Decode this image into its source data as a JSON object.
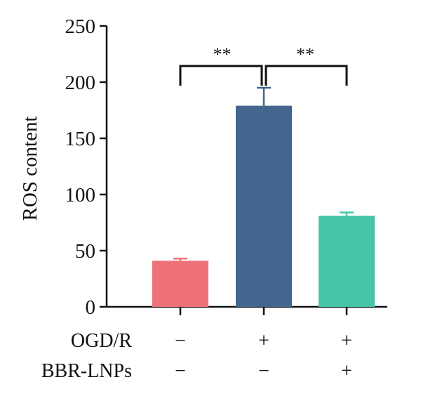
{
  "chart_data": {
    "type": "bar",
    "ylabel": "ROS content",
    "ylim": [
      0,
      250
    ],
    "yticks": [
      0,
      50,
      100,
      150,
      200,
      250
    ],
    "grid": false,
    "bars": [
      {
        "value": 41,
        "error": 2,
        "color": "#ee7178"
      },
      {
        "value": 179,
        "error": 16,
        "color": "#43668e"
      },
      {
        "value": 81,
        "error": 3,
        "color": "#46c4a8"
      }
    ],
    "conditions": [
      {
        "label": "OGD/R",
        "marks": [
          "−",
          "+",
          "+"
        ]
      },
      {
        "label": "BBR-LNPs",
        "marks": [
          "−",
          "−",
          "+"
        ]
      }
    ],
    "significance": [
      {
        "from": 0,
        "to": 1,
        "label": "**"
      },
      {
        "from": 1,
        "to": 2,
        "label": "**"
      }
    ]
  }
}
